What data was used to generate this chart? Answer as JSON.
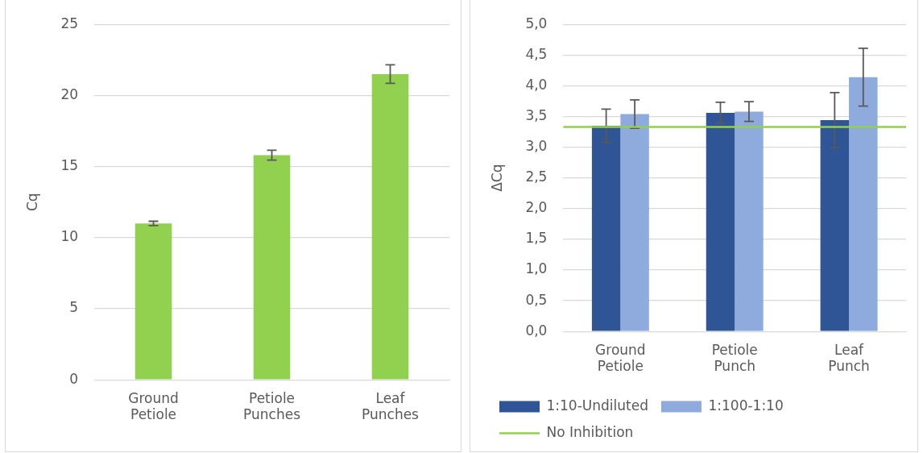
{
  "chart_data": [
    {
      "type": "bar",
      "ylabel": "Cq",
      "categories": [
        "Ground\nPetiole",
        "Petiole\nPunches",
        "Leaf\nPunches"
      ],
      "values": [
        11.0,
        15.8,
        21.5
      ],
      "errors": [
        0.15,
        0.35,
        0.65
      ],
      "color": "#92d050",
      "ylim": [
        0,
        25
      ],
      "yticks": [
        0,
        5,
        10,
        15,
        20,
        25
      ],
      "grid": "y",
      "legend": false
    },
    {
      "type": "bar",
      "ylabel": "ΔCq",
      "categories": [
        "Ground\nPetiole",
        "Petiole\nPunch",
        "Leaf\nPunch"
      ],
      "series": [
        {
          "name": "1:10-Undiluted",
          "color": "#2f5597",
          "values": [
            3.35,
            3.56,
            3.44
          ],
          "errors": [
            0.27,
            0.17,
            0.45
          ]
        },
        {
          "name": "1:100-1:10",
          "color": "#8faadc",
          "values": [
            3.54,
            3.58,
            4.14
          ],
          "errors": [
            0.23,
            0.16,
            0.47
          ]
        }
      ],
      "ref_lines": [
        {
          "axis": "y",
          "value": 3.33,
          "label": "No Inhibition",
          "color": "#92d050"
        }
      ],
      "ylim": [
        0,
        5
      ],
      "yticks": [
        {
          "value": 0,
          "label": "0,0"
        },
        {
          "value": 0.5,
          "label": "0,5"
        },
        {
          "value": 1,
          "label": "1,0"
        },
        {
          "value": 1.5,
          "label": "1,5"
        },
        {
          "value": 2,
          "label": "2,0"
        },
        {
          "value": 2.5,
          "label": "2,5"
        },
        {
          "value": 3,
          "label": "3,0"
        },
        {
          "value": 3.5,
          "label": "3,5"
        },
        {
          "value": 4,
          "label": "4,0"
        },
        {
          "value": 4.5,
          "label": "4,5"
        },
        {
          "value": 5,
          "label": "5,0"
        }
      ],
      "grid": "y",
      "legend": "bottom"
    }
  ]
}
